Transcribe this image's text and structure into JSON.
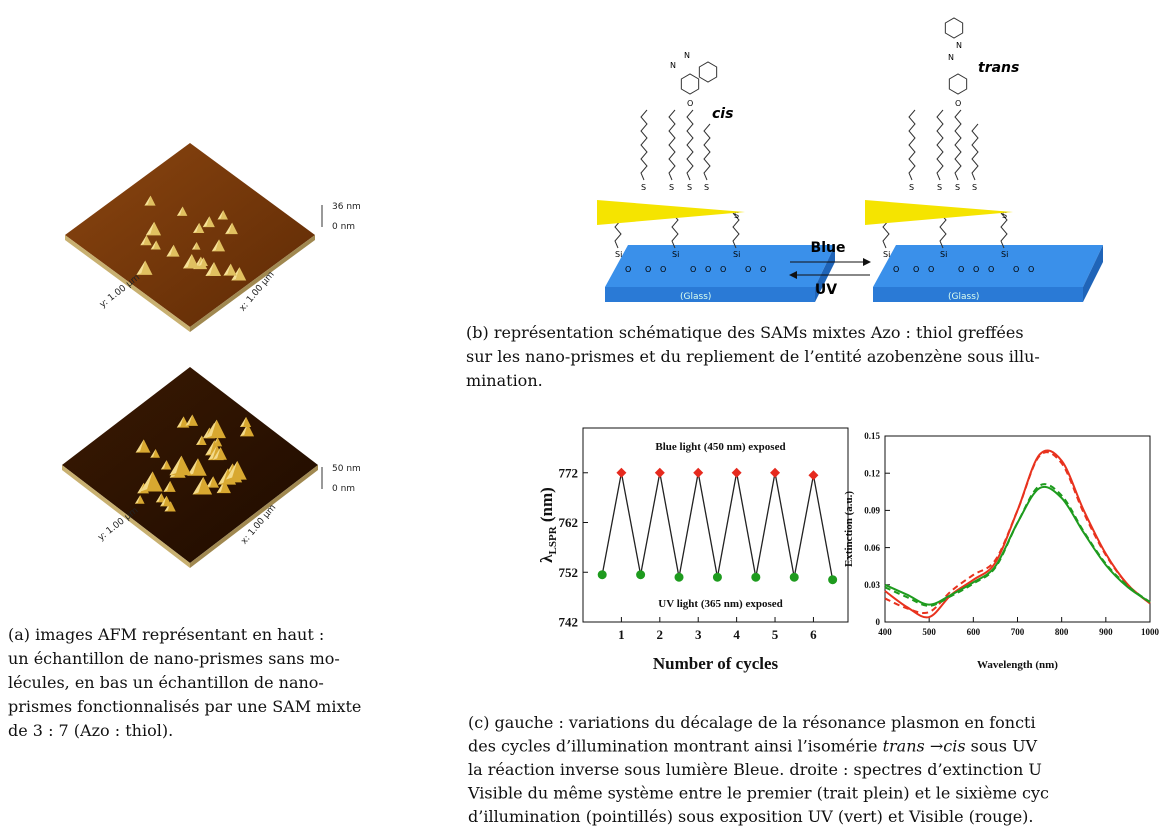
{
  "figure_a": {
    "top": {
      "max": "36 nm",
      "min": "0 nm",
      "y_axis": "y: 1.00 µm",
      "x_axis": "x: 1.00 µm"
    },
    "bottom": {
      "max": "50 nm",
      "min": "0 nm",
      "y_axis": "y: 1.00 µm",
      "x_axis": "x: 1.00 µm"
    },
    "caption": [
      [
        "(a)  images AFM représentant en haut :"
      ],
      [
        "un échantillon de nano-prismes sans mo-"
      ],
      [
        "lécules, en bas un échantillon de nano-"
      ],
      [
        "prismes fonctionnalisés par une SAM mixte"
      ],
      [
        "de 3 : 7 (Azo : thiol)."
      ]
    ]
  },
  "figure_b": {
    "labels": {
      "left_isomer": "cis",
      "right_isomer": "trans",
      "forward": "Blue",
      "backward": "UV",
      "substrate": "(Glass)"
    },
    "atoms": {
      "N": "N",
      "O": "O",
      "S": "S",
      "Si": "Si"
    },
    "caption": [
      [
        "(b)  représentation schématique des SAMs mixtes Azo : thiol greffées"
      ],
      [
        "sur les nano-prismes et du repliement de l’entité azobenzène sous illu-"
      ],
      [
        "mination."
      ]
    ]
  },
  "chart_data": [
    {
      "type": "line",
      "annotations": [
        "Blue light (450 nm) exposed",
        "UV light (365 nm) exposed"
      ],
      "ylabel": {
        "symbol": "λ",
        "subscript": "LSPR",
        "unit": "(nm)"
      },
      "xlabel": "Number of cycles",
      "x": [
        0.5,
        1,
        1.5,
        2,
        2.5,
        3,
        3.5,
        4,
        4.5,
        5,
        5.5,
        6,
        6.5
      ],
      "values": [
        751.5,
        772,
        751.5,
        772,
        751,
        772,
        751,
        772,
        751,
        772,
        751,
        771.5,
        750.5
      ],
      "point_colors": [
        "#1e9b1e",
        "#e62a1e",
        "#1e9b1e",
        "#e62a1e",
        "#1e9b1e",
        "#e62a1e",
        "#1e9b1e",
        "#e62a1e",
        "#1e9b1e",
        "#e62a1e",
        "#1e9b1e",
        "#e62a1e",
        "#1e9b1e"
      ],
      "line_color": "#222222",
      "xlim": [
        0,
        6.9
      ],
      "xticks": [
        1,
        2,
        3,
        4,
        5,
        6
      ],
      "ylim": [
        742,
        781
      ],
      "yticks": [
        742,
        752,
        762,
        772
      ]
    },
    {
      "type": "spectra",
      "xlabel": "Wavelength (nm)",
      "ylabel": "Extinction (a.u.)",
      "x": [
        400,
        450,
        500,
        550,
        600,
        650,
        700,
        750,
        800,
        850,
        900,
        950,
        1000
      ],
      "series": [
        {
          "color": "#e8321e",
          "dash": false,
          "values": [
            0.025,
            0.012,
            0.004,
            0.022,
            0.034,
            0.048,
            0.09,
            0.135,
            0.13,
            0.09,
            0.055,
            0.03,
            0.015
          ]
        },
        {
          "color": "#e8321e",
          "dash": true,
          "values": [
            0.019,
            0.011,
            0.008,
            0.025,
            0.038,
            0.05,
            0.09,
            0.134,
            0.128,
            0.088,
            0.054,
            0.03,
            0.015
          ]
        },
        {
          "color": "#1e9b1e",
          "dash": false,
          "values": [
            0.03,
            0.022,
            0.014,
            0.022,
            0.032,
            0.045,
            0.08,
            0.108,
            0.1,
            0.072,
            0.046,
            0.028,
            0.016
          ]
        },
        {
          "color": "#1e9b1e",
          "dash": true,
          "values": [
            0.028,
            0.02,
            0.013,
            0.021,
            0.031,
            0.044,
            0.08,
            0.11,
            0.102,
            0.073,
            0.047,
            0.029,
            0.016
          ]
        }
      ],
      "xlim": [
        400,
        1000
      ],
      "xticks": [
        400,
        500,
        600,
        700,
        800,
        900,
        1000
      ],
      "ylim": [
        0,
        0.15
      ],
      "yticks": [
        0,
        0.03,
        0.06,
        0.09,
        0.12,
        0.15
      ]
    }
  ],
  "figure_c": {
    "caption": [
      [
        "(c)  gauche : variations du décalage de la résonance plasmon en foncti"
      ],
      [
        "des cycles d’illumination montrant ainsi l’isomérie ",
        {
          "text": "trans",
          "style": "italic"
        },
        " →",
        {
          "text": "cis",
          "style": "italic"
        },
        " sous UV"
      ],
      [
        "la réaction inverse sous lumière Bleue. droite : spectres d’extinction U"
      ],
      [
        "Visible du même système entre le premier (trait plein) et le sixième cyc"
      ],
      [
        "d’illumination (pointillés) sous exposition UV (vert) et Visible (rouge)."
      ]
    ]
  }
}
